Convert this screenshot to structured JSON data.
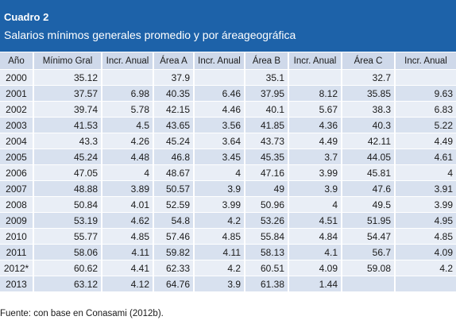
{
  "header": {
    "title": "Cuadro 2",
    "subtitle": "Salarios mínimos generales promedio y por áreageográfica"
  },
  "table": {
    "columns": [
      "Año",
      "Mínimo Gral",
      "Incr. Anual",
      "Área A",
      "Incr. Anual",
      "Área B",
      "Incr. Anual",
      "Área C",
      "Incr. Anual"
    ],
    "rows": [
      [
        "2000",
        "35.12",
        "",
        "37.9",
        "",
        "35.1",
        "",
        "32.7",
        ""
      ],
      [
        "2001",
        "37.57",
        "6.98",
        "40.35",
        "6.46",
        "37.95",
        "8.12",
        "35.85",
        "9.63"
      ],
      [
        "2002",
        "39.74",
        "5.78",
        "42.15",
        "4.46",
        "40.1",
        "5.67",
        "38.3",
        "6.83"
      ],
      [
        "2003",
        "41.53",
        "4.5",
        "43.65",
        "3.56",
        "41.85",
        "4.36",
        "40.3",
        "5.22"
      ],
      [
        "2004",
        "43.3",
        "4.26",
        "45.24",
        "3.64",
        "43.73",
        "4.49",
        "42.11",
        "4.49"
      ],
      [
        "2005",
        "45.24",
        "4.48",
        "46.8",
        "3.45",
        "45.35",
        "3.7",
        "44.05",
        "4.61"
      ],
      [
        "2006",
        "47.05",
        "4",
        "48.67",
        "4",
        "47.16",
        "3.99",
        "45.81",
        "4"
      ],
      [
        "2007",
        "48.88",
        "3.89",
        "50.57",
        "3.9",
        "49",
        "3.9",
        "47.6",
        "3.91"
      ],
      [
        "2008",
        "50.84",
        "4.01",
        "52.59",
        "3.99",
        "50.96",
        "4",
        "49.5",
        "3.99"
      ],
      [
        "2009",
        "53.19",
        "4.62",
        "54.8",
        "4.2",
        "53.26",
        "4.51",
        "51.95",
        "4.95"
      ],
      [
        "2010",
        "55.77",
        "4.85",
        "57.46",
        "4.85",
        "55.84",
        "4.84",
        "54.47",
        "4.85"
      ],
      [
        "2011",
        "58.06",
        "4.11",
        "59.82",
        "4.11",
        "58.13",
        "4.1",
        "56.7",
        "4.09"
      ],
      [
        "2012*",
        "60.62",
        "4.41",
        "62.33",
        "4.2",
        "60.51",
        "4.09",
        "59.08",
        "4.2"
      ],
      [
        "2013",
        "63.12",
        "4.12",
        "64.76",
        "3.9",
        "61.38",
        "1.44",
        "",
        ""
      ]
    ]
  },
  "footer": {
    "source": "Fuente: con base en Conasami (2012b)."
  }
}
